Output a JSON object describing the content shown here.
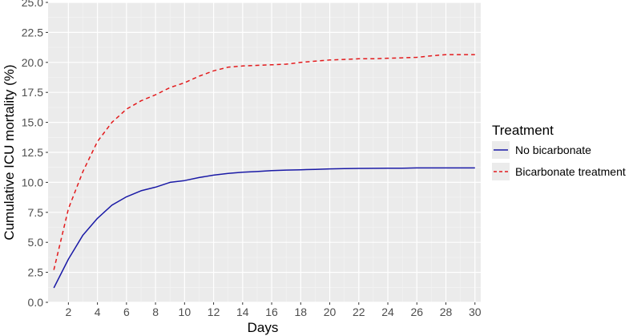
{
  "chart_data": {
    "type": "line",
    "xlabel": "Days",
    "ylabel": "Cumulative ICU mortality (%)",
    "xlim": [
      0.6,
      30.4
    ],
    "ylim": [
      0,
      25
    ],
    "x_ticks": [
      2,
      4,
      6,
      8,
      10,
      12,
      14,
      16,
      18,
      20,
      22,
      24,
      26,
      28,
      30
    ],
    "x_tick_labels": [
      "2",
      "4",
      "6",
      "8",
      "10",
      "12",
      "14",
      "16",
      "18",
      "20",
      "22",
      "24",
      "26",
      "28",
      "30"
    ],
    "y_ticks": [
      0,
      2.5,
      5,
      7.5,
      10,
      12.5,
      15,
      17.5,
      20,
      22.5,
      25
    ],
    "y_tick_labels": [
      "0.0",
      "2.5",
      "5.0",
      "7.5",
      "10.0",
      "12.5",
      "15.0",
      "17.5",
      "20.0",
      "22.5",
      "25.0"
    ],
    "grid": true,
    "legend": {
      "title": "Treatment",
      "position": "right"
    },
    "x": [
      1,
      2,
      3,
      4,
      5,
      6,
      7,
      8,
      9,
      10,
      11,
      12,
      13,
      14,
      15,
      16,
      17,
      18,
      19,
      20,
      21,
      22,
      23,
      24,
      25,
      26,
      27,
      28,
      29,
      30
    ],
    "series": [
      {
        "name": "No bicarbonate",
        "color": "#1a1aa6",
        "dash": "solid",
        "values": [
          1.2,
          3.6,
          5.6,
          7.0,
          8.1,
          8.8,
          9.3,
          9.6,
          10.0,
          10.15,
          10.4,
          10.6,
          10.75,
          10.85,
          10.9,
          10.98,
          11.02,
          11.05,
          11.08,
          11.12,
          11.15,
          11.16,
          11.17,
          11.18,
          11.18,
          11.2,
          11.2,
          11.2,
          11.2,
          11.2
        ]
      },
      {
        "name": "Bicarbonate treatment",
        "color": "#e31a1c",
        "dash": "dashed",
        "values": [
          2.7,
          7.8,
          10.9,
          13.4,
          15.0,
          16.1,
          16.8,
          17.3,
          17.9,
          18.3,
          18.85,
          19.3,
          19.6,
          19.7,
          19.75,
          19.8,
          19.85,
          20.0,
          20.1,
          20.2,
          20.25,
          20.3,
          20.3,
          20.35,
          20.38,
          20.42,
          20.55,
          20.65,
          20.65,
          20.65
        ]
      }
    ]
  }
}
